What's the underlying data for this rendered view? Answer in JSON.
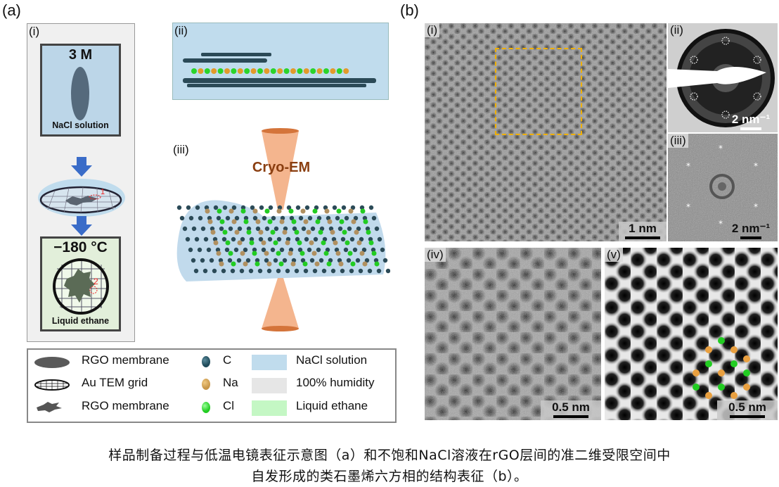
{
  "panel_a": {
    "label": "(a)",
    "i": {
      "label": "(i)",
      "concentration": "3 M",
      "solution_label": "NaCl solution",
      "marker_1": "1",
      "marker_2": "2",
      "temperature": "−180 °C",
      "cryogen_label": "Liquid ethane"
    },
    "ii": {
      "label": "(ii)"
    },
    "iii": {
      "label": "(iii)",
      "beam_label": "Cryo-EM"
    },
    "legend": [
      {
        "icon": "rgo-membrane-ellipse-icon",
        "label": "RGO membrane"
      },
      {
        "icon": "au-tem-grid-icon",
        "label": "Au TEM  grid"
      },
      {
        "icon": "rgo-membrane-flake-icon",
        "label": "RGO membrane"
      },
      {
        "icon": "carbon-atom-icon",
        "label": "C",
        "color": "#1f4a5a"
      },
      {
        "icon": "sodium-atom-icon",
        "label": "Na",
        "color": "#c8974a"
      },
      {
        "icon": "chlorine-atom-icon",
        "label": "Cl",
        "color": "#22cc22"
      },
      {
        "swatch": "#c0dced",
        "label": "NaCl solution"
      },
      {
        "swatch": "#e6e6e6",
        "label": "100% humidity"
      },
      {
        "swatch": "#c4f7c4",
        "label": "Liquid ethane"
      }
    ]
  },
  "panel_b": {
    "label": "(b)",
    "i": {
      "label": "(i)",
      "scale": "1 nm"
    },
    "ii": {
      "label": "(ii)",
      "scale": "2 nm⁻¹"
    },
    "iii": {
      "label": "(iii)",
      "scale": "2 nm⁻¹"
    },
    "iv": {
      "label": "(iv)",
      "scale": "0.5 nm"
    },
    "v": {
      "label": "(v)",
      "scale": "0.5 nm"
    }
  },
  "caption": {
    "line1": "样品制备过程与低温电镜表征示意图（a）和不饱和NaCl溶液在rGO层间的准二维受限空间中",
    "line2": "自发形成的类石墨烯六方相的结构表征（b）。"
  },
  "colors": {
    "nacl_solution": "#c0dced",
    "humidity": "#e6e6e6",
    "liquid_ethane": "#c4f7c4",
    "beam": "#f2a87a",
    "roi_box": "#f0b000"
  }
}
